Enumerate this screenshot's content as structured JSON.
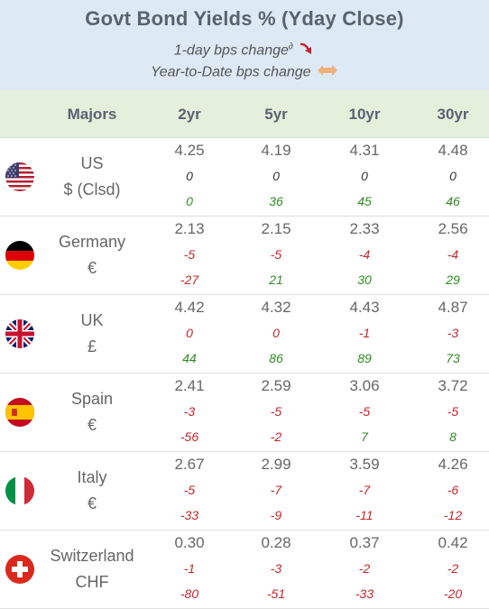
{
  "header": {
    "title": "Govt Bond Yields %  (Yday Close)",
    "legend_daily": "1-day bps change",
    "legend_superscript": "∂",
    "legend_ytd": "Year-to-Date bps change"
  },
  "columns": [
    "Majors",
    "2yr",
    "5yr",
    "10yr",
    "30yr"
  ],
  "colors": {
    "negative": "#c0272d",
    "positive": "#2e8b1f",
    "neutral": "#333333",
    "header_bg": "#dde9f5",
    "colhead_bg": "#e4efdc"
  },
  "rows": [
    {
      "flag": "us-flag-icon",
      "name": "US",
      "sub": "$ (Clsd)",
      "yields": [
        "4.25",
        "4.19",
        "4.31",
        "4.48"
      ],
      "daily": [
        "0",
        "0",
        "0",
        "0"
      ],
      "ytd": [
        "0",
        "36",
        "45",
        "46"
      ]
    },
    {
      "flag": "germany-flag-icon",
      "name": "Germany",
      "sub": "€",
      "yields": [
        "2.13",
        "2.15",
        "2.33",
        "2.56"
      ],
      "daily": [
        "-5",
        "-5",
        "-4",
        "-4"
      ],
      "ytd": [
        "-27",
        "21",
        "30",
        "29"
      ]
    },
    {
      "flag": "uk-flag-icon",
      "name": "UK",
      "sub": "£",
      "yields": [
        "4.42",
        "4.32",
        "4.43",
        "4.87"
      ],
      "daily": [
        "0",
        "0",
        "-1",
        "-3"
      ],
      "ytd": [
        "44",
        "86",
        "89",
        "73"
      ]
    },
    {
      "flag": "spain-flag-icon",
      "name": "Spain",
      "sub": "€",
      "yields": [
        "2.41",
        "2.59",
        "3.06",
        "3.72"
      ],
      "daily": [
        "-3",
        "-5",
        "-5",
        "-5"
      ],
      "ytd": [
        "-56",
        "-2",
        "7",
        "8"
      ]
    },
    {
      "flag": "italy-flag-icon",
      "name": "Italy",
      "sub": "€",
      "yields": [
        "2.67",
        "2.99",
        "3.59",
        "4.26"
      ],
      "daily": [
        "-5",
        "-7",
        "-7",
        "-6"
      ],
      "ytd": [
        "-33",
        "-9",
        "-11",
        "-12"
      ]
    },
    {
      "flag": "switzerland-flag-icon",
      "name": "Switzerland",
      "sub": "CHF",
      "yields": [
        "0.30",
        "0.28",
        "0.37",
        "0.42"
      ],
      "daily": [
        "-1",
        "-3",
        "-2",
        "-2"
      ],
      "ytd": [
        "-80",
        "-51",
        "-33",
        "-20"
      ]
    }
  ],
  "row_colors": {
    "daily": [
      [
        "neutral",
        "neutral",
        "neutral",
        "neutral"
      ],
      [
        "negative",
        "negative",
        "negative",
        "negative"
      ],
      [
        "negative",
        "negative",
        "negative",
        "negative"
      ],
      [
        "negative",
        "negative",
        "negative",
        "negative"
      ],
      [
        "negative",
        "negative",
        "negative",
        "negative"
      ],
      [
        "negative",
        "negative",
        "negative",
        "negative"
      ]
    ],
    "ytd": [
      [
        "positive",
        "positive",
        "positive",
        "positive"
      ],
      [
        "negative",
        "positive",
        "positive",
        "positive"
      ],
      [
        "positive",
        "positive",
        "positive",
        "positive"
      ],
      [
        "negative",
        "negative",
        "positive",
        "positive"
      ],
      [
        "negative",
        "negative",
        "negative",
        "negative"
      ],
      [
        "negative",
        "negative",
        "negative",
        "negative"
      ]
    ]
  }
}
